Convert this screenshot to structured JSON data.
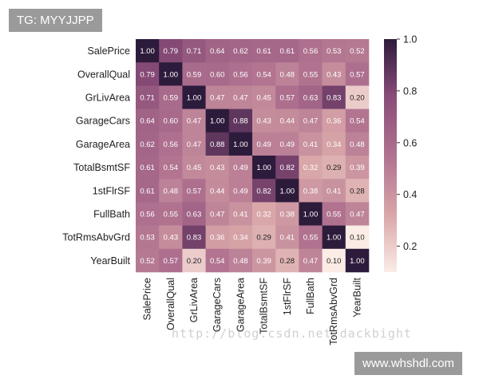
{
  "badges": {
    "tag": "TG: MYYJJPP",
    "site": "www.whshdl.com"
  },
  "watermark": "http://blog.csdn.net/dackbight",
  "colors": {
    "low": "#fbece5",
    "mid_low": "#d8a5a8",
    "mid": "#b0728f",
    "mid_high": "#8a4d79",
    "high": "#2d1b3c",
    "text_light": "#ffffff",
    "text_dark": "#222222",
    "axis_text": "#222222"
  },
  "chart_data": {
    "type": "heatmap",
    "title": "",
    "labels": [
      "SalePrice",
      "OverallQual",
      "GrLivArea",
      "GarageCars",
      "GarageArea",
      "TotalBsmtSF",
      "1stFlrSF",
      "FullBath",
      "TotRmsAbvGrd",
      "YearBuilt"
    ],
    "values": [
      [
        1.0,
        0.79,
        0.71,
        0.64,
        0.62,
        0.61,
        0.61,
        0.56,
        0.53,
        0.52
      ],
      [
        0.79,
        1.0,
        0.59,
        0.6,
        0.56,
        0.54,
        0.48,
        0.55,
        0.43,
        0.57
      ],
      [
        0.71,
        0.59,
        1.0,
        0.47,
        0.47,
        0.45,
        0.57,
        0.63,
        0.83,
        0.2
      ],
      [
        0.64,
        0.6,
        0.47,
        1.0,
        0.88,
        0.43,
        0.44,
        0.47,
        0.36,
        0.54
      ],
      [
        0.62,
        0.56,
        0.47,
        0.88,
        1.0,
        0.49,
        0.49,
        0.41,
        0.34,
        0.48
      ],
      [
        0.61,
        0.54,
        0.45,
        0.43,
        0.49,
        1.0,
        0.82,
        0.32,
        0.29,
        0.39
      ],
      [
        0.61,
        0.48,
        0.57,
        0.44,
        0.49,
        0.82,
        1.0,
        0.38,
        0.41,
        0.28
      ],
      [
        0.56,
        0.55,
        0.63,
        0.47,
        0.41,
        0.32,
        0.38,
        1.0,
        0.55,
        0.47
      ],
      [
        0.53,
        0.43,
        0.83,
        0.36,
        0.34,
        0.29,
        0.41,
        0.55,
        1.0,
        0.1
      ],
      [
        0.52,
        0.57,
        0.2,
        0.54,
        0.48,
        0.39,
        0.28,
        0.47,
        0.1,
        1.0
      ]
    ],
    "colorbar": {
      "range": [
        0.1,
        1.0
      ],
      "ticks": [
        0.2,
        0.4,
        0.6,
        0.8,
        1.0
      ],
      "tick_labels": [
        "0.2",
        "0.4",
        "0.6",
        "0.8",
        "1.0"
      ]
    },
    "value_format": "0.00"
  }
}
